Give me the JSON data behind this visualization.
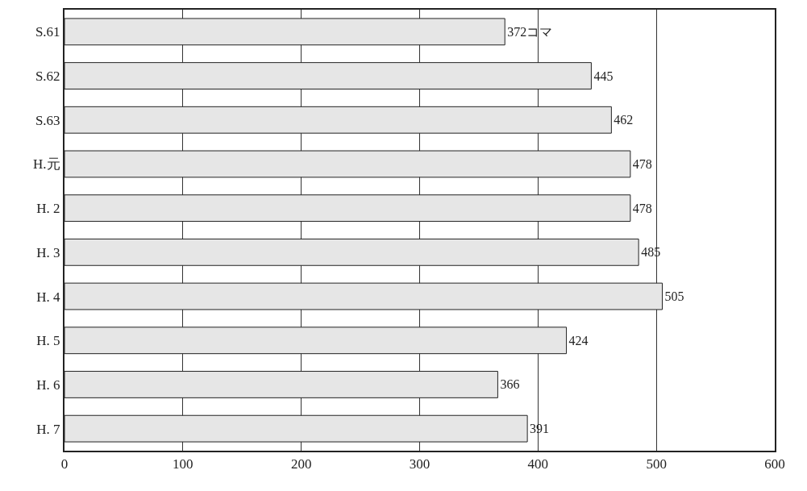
{
  "chart_data": {
    "type": "bar",
    "orientation": "horizontal",
    "categories": [
      "S.61",
      "S.62",
      "S.63",
      "H.元",
      "H. 2",
      "H. 3",
      "H. 4",
      "H. 5",
      "H. 6",
      "H. 7"
    ],
    "values": [
      372,
      445,
      462,
      478,
      478,
      485,
      505,
      424,
      366,
      391
    ],
    "value_labels": [
      "372コマ",
      "445",
      "462",
      "478",
      "478",
      "485",
      "505",
      "424",
      "366",
      "391"
    ],
    "color": "#e6e6e6",
    "xlim": [
      0,
      600
    ],
    "xticks": [
      0,
      100,
      200,
      300,
      400,
      500,
      600
    ],
    "grid": "x",
    "legend": false
  }
}
